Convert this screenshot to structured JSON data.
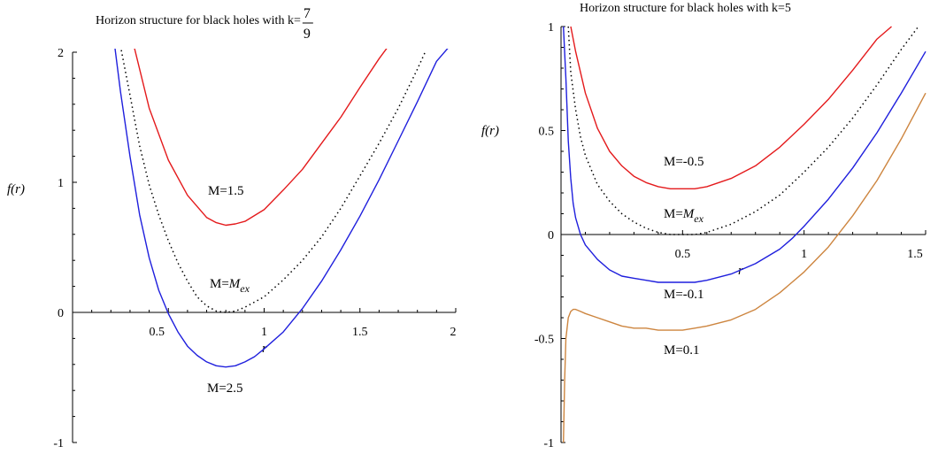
{
  "chart_data": [
    {
      "type": "line",
      "title": "Horizon structure for black holes with k=",
      "title_fraction": {
        "numerator": "7",
        "denominator": "9"
      },
      "ylabel": "f(r)",
      "xlabel": "r",
      "xlim": [
        0,
        2
      ],
      "ylim": [
        -1,
        2
      ],
      "xticks": [
        "0.5",
        "1",
        "1.5",
        "2"
      ],
      "yticks": [
        "-1",
        "0",
        "1",
        "2"
      ],
      "grid": false,
      "series": [
        {
          "name": "M=1.5",
          "label_parts": [
            "M=1.5"
          ],
          "color": "#e41a1c",
          "style": "solid",
          "x": [
            0.32,
            0.4,
            0.5,
            0.6,
            0.7,
            0.75,
            0.8,
            0.85,
            0.9,
            1.0,
            1.1,
            1.2,
            1.3,
            1.4,
            1.5,
            1.6,
            1.65
          ],
          "y": [
            2.05,
            1.57,
            1.17,
            0.9,
            0.73,
            0.69,
            0.67,
            0.68,
            0.7,
            0.79,
            0.94,
            1.1,
            1.3,
            1.5,
            1.73,
            1.95,
            2.05
          ]
        },
        {
          "name": "M=M_ex",
          "label_parts": [
            "M=",
            "M",
            "ex"
          ],
          "color": "#000000",
          "style": "dotted",
          "x": [
            0.25,
            0.3,
            0.35,
            0.4,
            0.45,
            0.5,
            0.55,
            0.6,
            0.65,
            0.7,
            0.75,
            0.8,
            0.85,
            0.9,
            1.0,
            1.1,
            1.2,
            1.3,
            1.4,
            1.5,
            1.6,
            1.7,
            1.8,
            1.84
          ],
          "y": [
            2.05,
            1.67,
            1.28,
            0.98,
            0.75,
            0.55,
            0.38,
            0.24,
            0.12,
            0.05,
            0.01,
            0.0,
            0.01,
            0.04,
            0.12,
            0.25,
            0.4,
            0.58,
            0.8,
            1.05,
            1.3,
            1.57,
            1.87,
            2.0
          ]
        },
        {
          "name": "M=2.5",
          "label_parts": [
            "M=2.5"
          ],
          "color": "#1f1fdd",
          "style": "solid",
          "x": [
            0.22,
            0.25,
            0.3,
            0.35,
            0.4,
            0.45,
            0.5,
            0.55,
            0.6,
            0.65,
            0.7,
            0.75,
            0.8,
            0.85,
            0.9,
            0.95,
            1.0,
            1.1,
            1.2,
            1.3,
            1.4,
            1.5,
            1.6,
            1.7,
            1.8,
            1.9,
            1.97
          ],
          "y": [
            2.05,
            1.7,
            1.2,
            0.75,
            0.42,
            0.17,
            -0.01,
            -0.15,
            -0.26,
            -0.33,
            -0.38,
            -0.41,
            -0.42,
            -0.41,
            -0.38,
            -0.34,
            -0.28,
            -0.15,
            0.03,
            0.24,
            0.48,
            0.74,
            1.02,
            1.32,
            1.62,
            1.93,
            2.05
          ]
        }
      ]
    },
    {
      "type": "line",
      "title": "Horizon structure for black holes with k=5",
      "ylabel": "f(r)",
      "xlabel": "r",
      "xlim": [
        0,
        1.5
      ],
      "ylim": [
        -1,
        1
      ],
      "xticks": [
        "0.5",
        "1",
        "1.5"
      ],
      "yticks": [
        "-1",
        "-0.5",
        "0",
        "0.5",
        "1"
      ],
      "grid": false,
      "series": [
        {
          "name": "M=-0.5",
          "label_parts": [
            "M=-0.5"
          ],
          "color": "#e41a1c",
          "style": "solid",
          "x": [
            0.04,
            0.06,
            0.08,
            0.1,
            0.15,
            0.2,
            0.25,
            0.3,
            0.35,
            0.4,
            0.45,
            0.5,
            0.55,
            0.6,
            0.7,
            0.8,
            0.9,
            1.0,
            1.1,
            1.2,
            1.3,
            1.36
          ],
          "y": [
            1.0,
            0.88,
            0.78,
            0.68,
            0.51,
            0.4,
            0.33,
            0.28,
            0.25,
            0.23,
            0.22,
            0.22,
            0.22,
            0.23,
            0.27,
            0.33,
            0.42,
            0.53,
            0.65,
            0.79,
            0.94,
            1.0
          ]
        },
        {
          "name": "M=M_ex",
          "label_parts": [
            "M=",
            "M",
            "ex"
          ],
          "color": "#000000",
          "style": "dotted",
          "x": [
            0.03,
            0.04,
            0.06,
            0.08,
            0.1,
            0.15,
            0.2,
            0.25,
            0.3,
            0.35,
            0.4,
            0.45,
            0.5,
            0.55,
            0.6,
            0.7,
            0.8,
            0.9,
            1.0,
            1.1,
            1.2,
            1.3,
            1.4,
            1.47
          ],
          "y": [
            1.0,
            0.78,
            0.6,
            0.47,
            0.38,
            0.24,
            0.16,
            0.1,
            0.06,
            0.03,
            0.01,
            0.0,
            0.0,
            0.0,
            0.01,
            0.05,
            0.11,
            0.19,
            0.3,
            0.42,
            0.56,
            0.72,
            0.89,
            1.0
          ]
        },
        {
          "name": "M=-0.1",
          "label_parts": [
            "M=-0.1"
          ],
          "color": "#1f1fdd",
          "style": "solid",
          "x": [
            0.01,
            0.02,
            0.03,
            0.04,
            0.05,
            0.06,
            0.08,
            0.1,
            0.15,
            0.2,
            0.25,
            0.3,
            0.35,
            0.4,
            0.45,
            0.5,
            0.55,
            0.6,
            0.7,
            0.8,
            0.9,
            0.95,
            1.0,
            1.1,
            1.2,
            1.3,
            1.4,
            1.5
          ],
          "y": [
            1.0,
            0.75,
            0.45,
            0.27,
            0.15,
            0.08,
            0.0,
            -0.05,
            -0.12,
            -0.17,
            -0.2,
            -0.21,
            -0.22,
            -0.23,
            -0.23,
            -0.23,
            -0.23,
            -0.22,
            -0.19,
            -0.14,
            -0.07,
            -0.02,
            0.04,
            0.17,
            0.32,
            0.49,
            0.68,
            0.88
          ]
        },
        {
          "name": "M=0.1",
          "label_parts": [
            "M=0.1"
          ],
          "color": "#cd853f",
          "style": "solid",
          "x": [
            0.01,
            0.015,
            0.02,
            0.03,
            0.04,
            0.05,
            0.06,
            0.08,
            0.1,
            0.15,
            0.2,
            0.25,
            0.3,
            0.35,
            0.4,
            0.45,
            0.5,
            0.55,
            0.6,
            0.7,
            0.8,
            0.9,
            1.0,
            1.1,
            1.2,
            1.3,
            1.4,
            1.5
          ],
          "y": [
            -1.0,
            -0.7,
            -0.5,
            -0.4,
            -0.37,
            -0.36,
            -0.36,
            -0.37,
            -0.38,
            -0.4,
            -0.42,
            -0.44,
            -0.45,
            -0.45,
            -0.46,
            -0.46,
            -0.46,
            -0.45,
            -0.44,
            -0.41,
            -0.36,
            -0.28,
            -0.18,
            -0.06,
            0.09,
            0.26,
            0.46,
            0.68
          ]
        }
      ]
    }
  ]
}
